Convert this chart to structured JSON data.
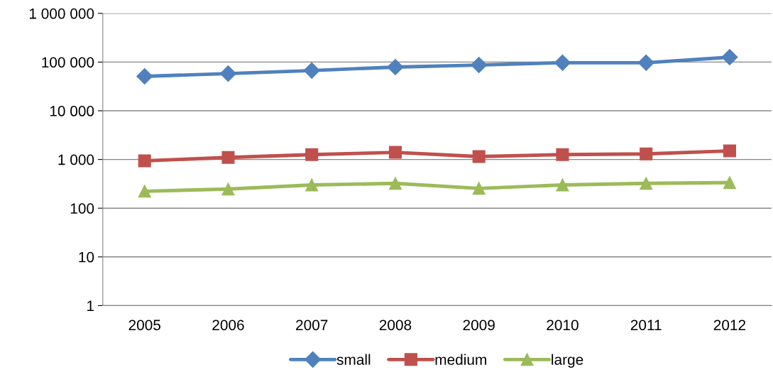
{
  "chart_data": {
    "type": "line",
    "log": true,
    "grid": "y",
    "legend": "bottom",
    "categories": [
      "2005",
      "2006",
      "2007",
      "2008",
      "2009",
      "2010",
      "2011",
      "2012"
    ],
    "ylim": [
      1,
      1000000
    ],
    "yticks": [
      {
        "value": 1,
        "label": "1"
      },
      {
        "value": 10,
        "label": "10"
      },
      {
        "value": 100,
        "label": "100"
      },
      {
        "value": 1000,
        "label": "1 000"
      },
      {
        "value": 10000,
        "label": "10 000"
      },
      {
        "value": 100000,
        "label": "100 000"
      },
      {
        "value": 1000000,
        "label": "1 000 000"
      }
    ],
    "series": [
      {
        "name": "small",
        "color": "#4f81bd",
        "marker": "diamond",
        "values": [
          51000,
          58000,
          67000,
          79000,
          87000,
          97000,
          97000,
          126000
        ]
      },
      {
        "name": "medium",
        "color": "#c0504d",
        "marker": "square",
        "values": [
          940,
          1100,
          1260,
          1400,
          1150,
          1260,
          1300,
          1500
        ]
      },
      {
        "name": "large",
        "color": "#9bbb59",
        "marker": "triangle",
        "values": [
          223,
          247,
          300,
          323,
          255,
          300,
          323,
          335
        ]
      }
    ]
  }
}
